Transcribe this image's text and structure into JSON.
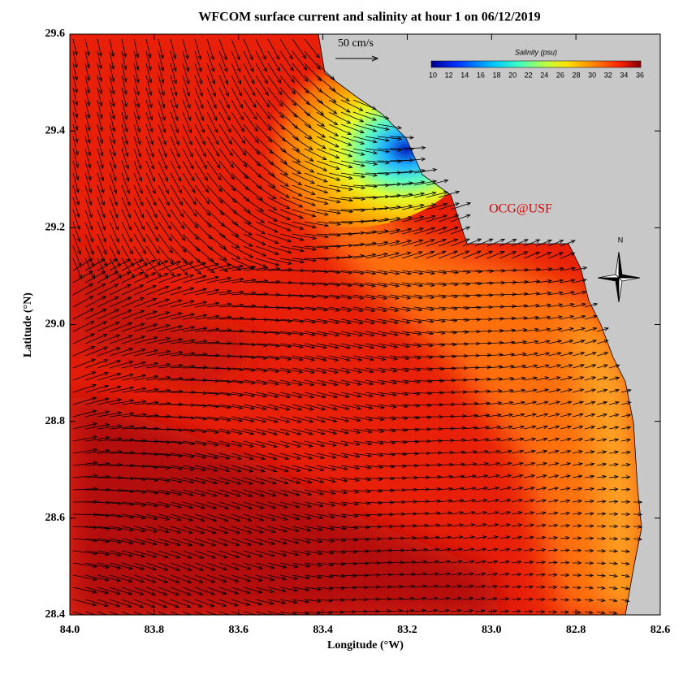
{
  "chart_data": {
    "type": "map",
    "title": "WFCOM surface current and salinity at hour 1 on 06/12/2019",
    "x_label": "Longitude (°W)",
    "y_label": "Latitude (°N)",
    "xlim": [
      84.0,
      82.6
    ],
    "ylim": [
      28.4,
      29.6
    ],
    "xticks": [
      {
        "value": 84.0,
        "label": "84.0"
      },
      83.8,
      83.6,
      83.4,
      83.2,
      {
        "value": 83.0,
        "label": "83.0"
      },
      82.8,
      82.6
    ],
    "yticks": [
      28.4,
      28.6,
      28.8,
      {
        "value": 29.0,
        "label": "29.0"
      },
      29.2,
      29.4,
      29.6
    ],
    "colorbar": {
      "label": "Salinity (psu)",
      "lim": [
        10,
        36
      ],
      "ticks": [
        10,
        12,
        14,
        16,
        18,
        20,
        22,
        24,
        26,
        28,
        30,
        32,
        34,
        36
      ]
    },
    "scale_label": "50 cm/s",
    "annotation": "OCG@USF",
    "compass_label": "N"
  }
}
